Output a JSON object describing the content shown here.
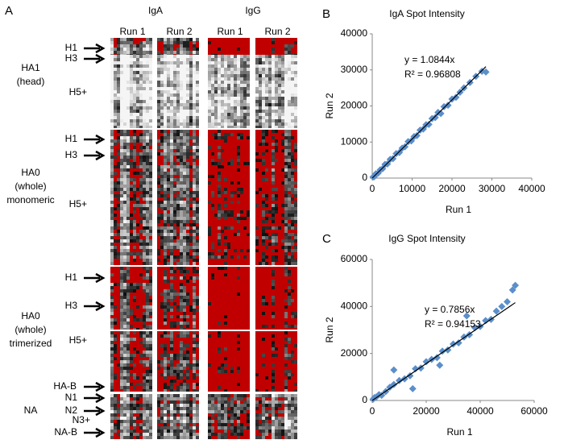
{
  "chart_data": [
    {
      "type": "heatmap",
      "panel": "A",
      "column_groups": [
        {
          "name": "IgA",
          "runs": [
            "Run 1",
            "Run 2"
          ]
        },
        {
          "name": "IgG",
          "runs": [
            "Run 1",
            "Run 2"
          ]
        }
      ],
      "row_groups": [
        {
          "name": [
            "HA1",
            "(head)"
          ],
          "rows": [
            "H1",
            "H3",
            "H5+"
          ]
        },
        {
          "name": [
            "HA0",
            "(whole)",
            "monomeric"
          ],
          "rows": [
            "H1",
            "H3",
            "H5+"
          ]
        },
        {
          "name": [
            "HA0",
            "(whole)",
            "trimerized"
          ],
          "rows": [
            "H1",
            "H3",
            "H5+",
            "HA-B"
          ]
        },
        {
          "name": [
            "NA"
          ],
          "rows": [
            "N1",
            "N2",
            "N3+",
            "NA-B"
          ]
        }
      ]
    },
    {
      "type": "scatter",
      "panel": "B",
      "title": "IgA Spot Intensity",
      "xlabel": "Run 1",
      "ylabel": "Run 2",
      "color": "#5b8fcb",
      "x": [
        200,
        500,
        900,
        1500,
        2000,
        2600,
        3200,
        3800,
        4500,
        5200,
        6000,
        6800,
        7500,
        8200,
        9000,
        9800,
        10500,
        11200,
        12000,
        12800,
        13500,
        14200,
        15000,
        15800,
        16500,
        17200,
        18000,
        19000,
        20000,
        21000,
        22000,
        23000,
        24500,
        26000,
        27500,
        28500
      ],
      "y": [
        300,
        400,
        1200,
        1400,
        2300,
        2600,
        3800,
        3900,
        5200,
        5400,
        6800,
        7100,
        8300,
        8700,
        10100,
        10300,
        11500,
        11800,
        13300,
        13600,
        14800,
        14900,
        16500,
        16800,
        18200,
        17900,
        19800,
        20200,
        21900,
        22400,
        23800,
        25000,
        26500,
        28200,
        29600,
        29400
      ],
      "xlim": [
        0,
        40000
      ],
      "ylim": [
        0,
        40000
      ],
      "xticks": [
        0,
        10000,
        20000,
        30000,
        40000
      ],
      "yticks": [
        0,
        10000,
        20000,
        30000,
        40000
      ],
      "trendline_slope": 1.0844,
      "annotations": [
        "y = 1.0844x",
        "R² = 0.96808"
      ]
    },
    {
      "type": "scatter",
      "panel": "C",
      "title": "IgG Spot Intensity",
      "xlabel": "Run 1",
      "ylabel": "Run 2",
      "color": "#5b8fcb",
      "x": [
        300,
        800,
        1500,
        2500,
        3500,
        5000,
        6500,
        8000,
        10000,
        12000,
        14000,
        16000,
        18000,
        20000,
        22000,
        24000,
        26000,
        28000,
        30000,
        32000,
        34000,
        36000,
        38000,
        40000,
        42000,
        44000,
        46000,
        48000,
        50000,
        52000,
        53000,
        8000,
        15000,
        25000,
        35000
      ],
      "y": [
        500,
        1200,
        1500,
        2500,
        2200,
        3800,
        5600,
        6800,
        8500,
        9200,
        10500,
        13500,
        13800,
        16500,
        17500,
        18200,
        21000,
        21500,
        24000,
        24500,
        27000,
        28000,
        31000,
        31500,
        34000,
        34500,
        38000,
        40000,
        42000,
        47000,
        49000,
        13000,
        5000,
        15000,
        36000
      ],
      "xlim": [
        0,
        60000
      ],
      "ylim": [
        0,
        60000
      ],
      "xticks": [
        0,
        20000,
        40000,
        60000
      ],
      "yticks": [
        0,
        20000,
        40000,
        60000
      ],
      "trendline_slope": 0.7856,
      "annotations": [
        "y = 0.7856x",
        "R² = 0.94153"
      ]
    }
  ]
}
